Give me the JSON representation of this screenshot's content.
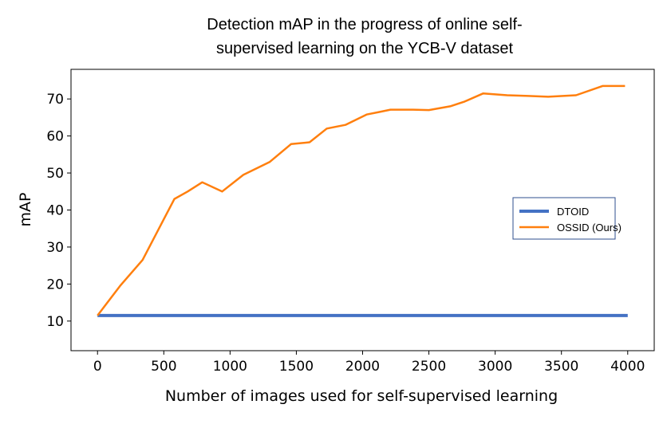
{
  "chart_data": {
    "type": "line",
    "title_lines": [
      "Detection mAP in the progress of online self-",
      "supervised learning on the YCB-V dataset"
    ],
    "xlabel": "Number of images used for self-supervised learning",
    "ylabel": "mAP",
    "xlim": [
      -200,
      4200
    ],
    "ylim": [
      2,
      78
    ],
    "xticks": [
      0,
      500,
      1000,
      1500,
      2000,
      2500,
      3000,
      3500,
      4000
    ],
    "yticks": [
      10,
      20,
      30,
      40,
      50,
      60,
      70
    ],
    "grid": false,
    "legend_position": "center-right",
    "series": [
      {
        "name": "DTOID",
        "color": "#4472c4",
        "x": [
          0,
          4000
        ],
        "y": [
          11.5,
          11.5
        ]
      },
      {
        "name": "OSSID (Ours)",
        "color": "#ff7f0e",
        "x": [
          0,
          170,
          340,
          500,
          580,
          680,
          790,
          940,
          1100,
          1300,
          1460,
          1600,
          1730,
          1870,
          2030,
          2130,
          2210,
          2380,
          2500,
          2660,
          2770,
          2910,
          3090,
          3250,
          3400,
          3610,
          3810,
          3980
        ],
        "y": [
          11.5,
          19.5,
          26.5,
          37.5,
          43,
          45,
          47.5,
          45,
          49.5,
          53,
          57.8,
          58.3,
          62,
          63,
          65.8,
          66.5,
          67.1,
          67.1,
          67,
          68,
          69.3,
          71.5,
          71,
          70.8,
          70.6,
          71,
          73.5,
          73.5
        ]
      }
    ]
  }
}
